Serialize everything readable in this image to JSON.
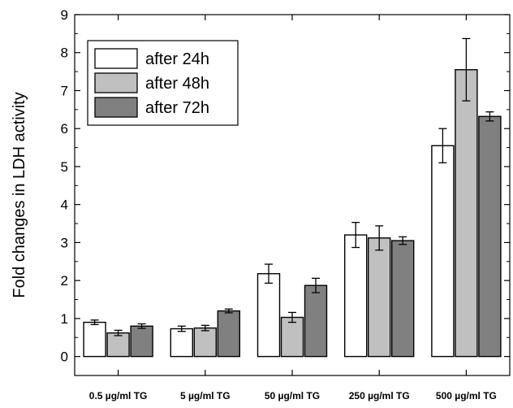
{
  "chart_data": {
    "type": "bar",
    "title": "",
    "xlabel": "",
    "ylabel": "Fold changes in LDH activity",
    "ylim": [
      -0.5,
      9
    ],
    "yticks": [
      0,
      1,
      2,
      3,
      4,
      5,
      6,
      7,
      8,
      9
    ],
    "grid": false,
    "legend_position": "top-left",
    "categories": [
      "0.5 µg/ml TG",
      "5 µg/ml TG",
      "50 µg/ml TG",
      "250 µg/ml TG",
      "500 µg/ml TG"
    ],
    "series": [
      {
        "name": "after 24h",
        "color": "#ffffff",
        "values": [
          0.9,
          0.73,
          2.18,
          3.2,
          5.55
        ],
        "errors": [
          0.06,
          0.07,
          0.25,
          0.33,
          0.45
        ]
      },
      {
        "name": "after 48h",
        "color": "#c0c0c0",
        "values": [
          0.62,
          0.75,
          1.03,
          3.12,
          7.55
        ],
        "errors": [
          0.07,
          0.07,
          0.13,
          0.32,
          0.82
        ]
      },
      {
        "name": "after 72h",
        "color": "#808080",
        "values": [
          0.8,
          1.2,
          1.87,
          3.05,
          6.32
        ],
        "errors": [
          0.06,
          0.05,
          0.19,
          0.1,
          0.12
        ]
      }
    ]
  }
}
